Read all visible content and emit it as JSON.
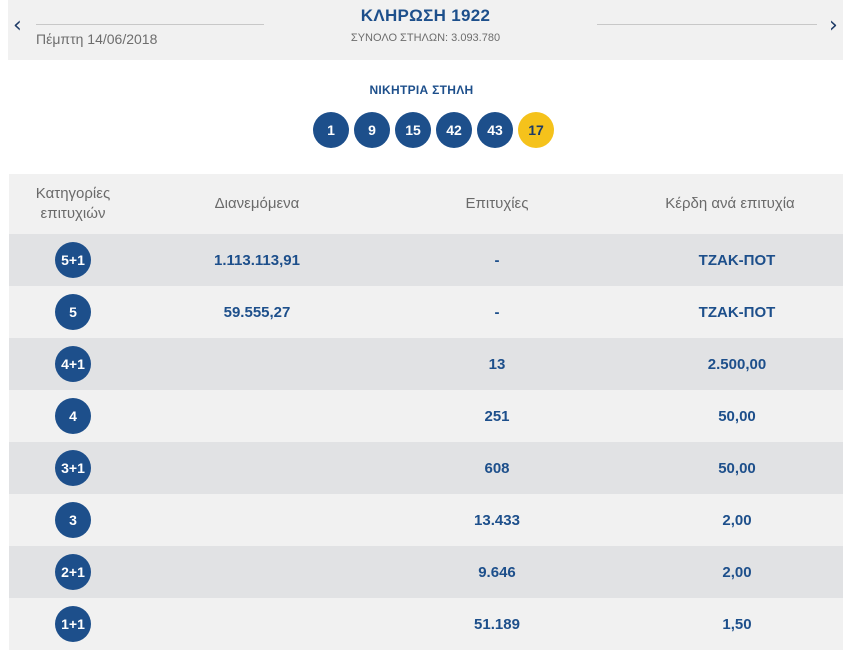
{
  "header": {
    "date": "Πέμπτη 14/06/2018",
    "title": "ΚΛΗΡΩΣΗ 1922",
    "subtitle": "ΣΥΝΟΛΟ ΣΤΗΛΩΝ: 3.093.780",
    "prev_icon": "‹",
    "next_icon": "›"
  },
  "winning": {
    "label": "ΝΙΚΗΤΡΙΑ ΣΤΗΛΗ",
    "numbers": [
      "1",
      "9",
      "15",
      "42",
      "43"
    ],
    "joker": "17"
  },
  "table": {
    "headers": {
      "category": "Κατηγορίες επιτυχιών",
      "distributed": "Διανεμόμενα",
      "wins": "Επιτυχίες",
      "prize": "Κέρδη ανά επιτυχία"
    },
    "rows": [
      {
        "category": "5+1",
        "distributed": "1.113.113,91",
        "wins": "-",
        "prize": "ΤΖΑΚ-ΠΟΤ"
      },
      {
        "category": "5",
        "distributed": "59.555,27",
        "wins": "-",
        "prize": "ΤΖΑΚ-ΠΟΤ"
      },
      {
        "category": "4+1",
        "distributed": "",
        "wins": "13",
        "prize": "2.500,00"
      },
      {
        "category": "4",
        "distributed": "",
        "wins": "251",
        "prize": "50,00"
      },
      {
        "category": "3+1",
        "distributed": "",
        "wins": "608",
        "prize": "50,00"
      },
      {
        "category": "3",
        "distributed": "",
        "wins": "13.433",
        "prize": "2,00"
      },
      {
        "category": "2+1",
        "distributed": "",
        "wins": "9.646",
        "prize": "2,00"
      },
      {
        "category": "1+1",
        "distributed": "",
        "wins": "51.189",
        "prize": "1,50"
      }
    ]
  }
}
